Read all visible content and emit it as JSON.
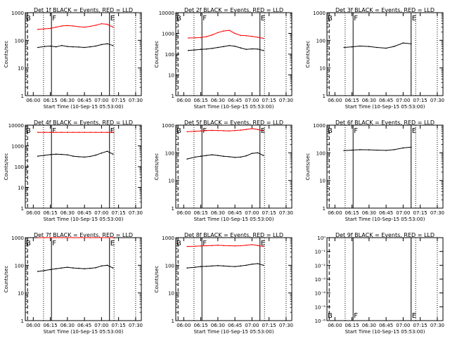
{
  "figure": {
    "xlabel": "Start Time (10-Sep-15 05:53:00)",
    "ylabel": "Counts/sec",
    "x_tick_labels": [
      "06:00",
      "06:15",
      "06:30",
      "06:45",
      "07:00",
      "07:15",
      "07:30"
    ],
    "colors": {
      "events": "#000000",
      "lld": "#ff0000",
      "axes": "#000000",
      "background": "#ffffff"
    },
    "marker_labels": [
      "B",
      "F",
      "E"
    ]
  },
  "chart_data": [
    {
      "type": "line",
      "title": "Det 1f BLACK = Events, RED = LLD",
      "ylim": [
        1,
        1000
      ],
      "log_y": true,
      "x": [
        "06:04",
        "06:10",
        "06:15",
        "06:20",
        "06:25",
        "06:30",
        "06:35",
        "06:40",
        "06:45",
        "06:50",
        "06:55",
        "07:00",
        "07:05",
        "07:10"
      ],
      "series": [
        {
          "name": "Events",
          "color": "#000000",
          "values": [
            55,
            60,
            62,
            58,
            65,
            60,
            58,
            57,
            55,
            58,
            62,
            70,
            75,
            65
          ]
        },
        {
          "name": "LLD",
          "color": "#ff0000",
          "values": [
            250,
            260,
            270,
            300,
            330,
            340,
            330,
            310,
            300,
            320,
            350,
            400,
            380,
            300
          ]
        }
      ]
    },
    {
      "type": "line",
      "title": "Det 2f BLACK = Events, RED = LLD",
      "ylim": [
        1,
        10000
      ],
      "log_y": true,
      "x": [
        "06:04",
        "06:10",
        "06:15",
        "06:20",
        "06:25",
        "06:30",
        "06:35",
        "06:40",
        "06:45",
        "06:50",
        "06:55",
        "07:00",
        "07:05",
        "07:10"
      ],
      "series": [
        {
          "name": "Events",
          "color": "#000000",
          "values": [
            150,
            160,
            170,
            175,
            190,
            210,
            230,
            260,
            240,
            200,
            170,
            180,
            175,
            150
          ]
        },
        {
          "name": "LLD",
          "color": "#ff0000",
          "values": [
            600,
            610,
            630,
            700,
            850,
            1100,
            1300,
            1400,
            1000,
            800,
            780,
            720,
            650,
            580
          ]
        }
      ]
    },
    {
      "type": "line",
      "title": "Det 3f BLACK = Events, RED = LLD",
      "ylim": [
        1,
        1000
      ],
      "log_y": true,
      "x": [
        "06:08",
        "06:15",
        "06:22",
        "06:30",
        "06:37",
        "06:45",
        "06:52",
        "07:00",
        "07:07"
      ],
      "series": [
        {
          "name": "Events",
          "color": "#000000",
          "values": [
            55,
            58,
            62,
            60,
            55,
            52,
            60,
            80,
            75
          ]
        }
      ]
    },
    {
      "type": "line",
      "title": "Det 4f BLACK = Events, RED = LLD",
      "ylim": [
        1,
        10000
      ],
      "log_y": true,
      "x": [
        "06:04",
        "06:10",
        "06:15",
        "06:20",
        "06:25",
        "06:30",
        "06:35",
        "06:40",
        "06:45",
        "06:50",
        "06:55",
        "07:00",
        "07:05",
        "07:10"
      ],
      "series": [
        {
          "name": "Events",
          "color": "#000000",
          "values": [
            320,
            350,
            380,
            400,
            390,
            370,
            320,
            300,
            290,
            310,
            360,
            450,
            550,
            400
          ]
        },
        {
          "name": "LLD",
          "color": "#ff0000",
          "values": [
            4500,
            4500,
            4500,
            4500,
            4500,
            4500,
            4500,
            4500,
            4500,
            4500,
            4500,
            4500,
            4500,
            4500
          ]
        }
      ]
    },
    {
      "type": "line",
      "title": "Det 5f BLACK = Events, RED = LLD",
      "ylim": [
        1,
        1000
      ],
      "log_y": true,
      "x": [
        "06:03",
        "06:10",
        "06:15",
        "06:20",
        "06:25",
        "06:30",
        "06:35",
        "06:40",
        "06:45",
        "06:50",
        "06:55",
        "07:00",
        "07:05",
        "07:10"
      ],
      "series": [
        {
          "name": "Events",
          "color": "#000000",
          "values": [
            60,
            70,
            75,
            80,
            85,
            80,
            75,
            72,
            68,
            70,
            78,
            95,
            100,
            80
          ]
        },
        {
          "name": "LLD",
          "color": "#ff0000",
          "values": [
            580,
            600,
            620,
            640,
            650,
            640,
            630,
            620,
            640,
            660,
            700,
            750,
            700,
            620
          ]
        }
      ]
    },
    {
      "type": "line",
      "title": "Det 6f BLACK = Events, RED = LLD",
      "ylim": [
        1,
        1000
      ],
      "log_y": true,
      "x": [
        "06:08",
        "06:15",
        "06:22",
        "06:30",
        "06:37",
        "06:45",
        "06:52",
        "07:00",
        "07:07"
      ],
      "series": [
        {
          "name": "Events",
          "color": "#000000",
          "values": [
            120,
            125,
            130,
            128,
            125,
            122,
            130,
            150,
            160
          ]
        }
      ]
    },
    {
      "type": "line",
      "title": "Det 7f BLACK = Events, RED = LLD",
      "ylim": [
        1,
        1000
      ],
      "log_y": true,
      "x": [
        "06:04",
        "06:10",
        "06:15",
        "06:20",
        "06:25",
        "06:30",
        "06:35",
        "06:40",
        "06:45",
        "06:50",
        "06:55",
        "07:00",
        "07:05",
        "07:10"
      ],
      "series": [
        {
          "name": "Events",
          "color": "#000000",
          "values": [
            60,
            65,
            70,
            75,
            80,
            85,
            80,
            78,
            75,
            78,
            82,
            95,
            100,
            80
          ]
        },
        {
          "name": "LLD",
          "color": "#ff0000",
          "values": [
            1000,
            1000,
            1000,
            1000,
            1000,
            1000,
            1000,
            1000,
            1000,
            1000,
            1000,
            1000,
            1000,
            1000
          ]
        }
      ]
    },
    {
      "type": "line",
      "title": "Det 8f BLACK = Events, RED = LLD",
      "ylim": [
        1,
        1000
      ],
      "log_y": true,
      "x": [
        "06:03",
        "06:10",
        "06:15",
        "06:20",
        "06:25",
        "06:30",
        "06:35",
        "06:40",
        "06:45",
        "06:50",
        "06:55",
        "07:00",
        "07:05",
        "07:10"
      ],
      "series": [
        {
          "name": "Events",
          "color": "#000000",
          "values": [
            80,
            85,
            90,
            92,
            95,
            98,
            95,
            92,
            90,
            95,
            100,
            110,
            115,
            100
          ]
        },
        {
          "name": "LLD",
          "color": "#ff0000",
          "values": [
            480,
            490,
            500,
            510,
            520,
            530,
            520,
            510,
            500,
            510,
            530,
            560,
            520,
            480
          ]
        }
      ]
    },
    {
      "type": "line",
      "title": "Det 9f BLACK = Events, RED = LLD",
      "y_tick_labels": [
        "10⁰",
        "10⁻¹",
        "10⁻²",
        "10⁻³",
        "10⁻⁴",
        "10⁻⁵",
        "10⁻⁶"
      ],
      "series": []
    }
  ]
}
